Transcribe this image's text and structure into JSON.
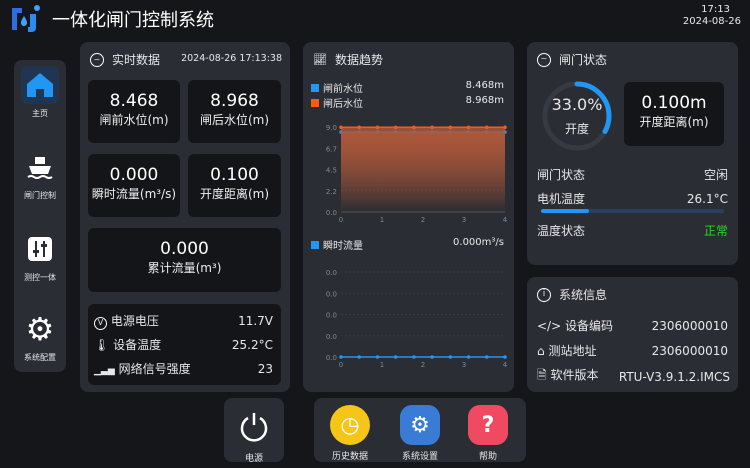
{
  "header": {
    "title": "一体化闸门控制系统",
    "time": "17:13",
    "date": "2024-08-26"
  },
  "sidebar": {
    "items": [
      {
        "label": "主页",
        "icon": "home-icon"
      },
      {
        "label": "闸门控制",
        "icon": "ship-icon"
      },
      {
        "label": "测控一体",
        "icon": "sliders-icon"
      },
      {
        "label": "系统配置",
        "icon": "gear-icon"
      }
    ]
  },
  "realtime": {
    "title": "实时数据",
    "timestamp": "2024-08-26 17:13:38",
    "cards": [
      {
        "value": "8.468",
        "label": "闸前水位(m)"
      },
      {
        "value": "8.968",
        "label": "闸后水位(m)"
      },
      {
        "value": "0.000",
        "label": "瞬时流量(m³/s)"
      },
      {
        "value": "0.100",
        "label": "开度距离(m)"
      },
      {
        "value": "0.000",
        "label": "累计流量(m³)"
      }
    ],
    "stats": [
      {
        "label": "电源电压",
        "value": "11.7V",
        "icon": "voltage-icon"
      },
      {
        "label": "设备温度",
        "value": "25.2°C",
        "icon": "thermometer-icon"
      },
      {
        "label": "网络信号强度",
        "value": "23",
        "icon": "signal-icon"
      }
    ]
  },
  "trend": {
    "title": "数据趋势",
    "legend1": [
      {
        "label": "闸前水位",
        "value": "8.468m",
        "color": "#2196f3"
      },
      {
        "label": "闸后水位",
        "value": "8.968m",
        "color": "#ff5a14"
      }
    ],
    "legend2": [
      {
        "label": "瞬时流量",
        "value": "0.000m³/s",
        "color": "#2196f3"
      }
    ]
  },
  "chart_data": [
    {
      "type": "area",
      "xlim": [
        0,
        4
      ],
      "ylim": [
        0,
        9.0
      ],
      "xticks": [
        "0",
        "1",
        "2",
        "3",
        "4"
      ],
      "yticks": [
        "0.0",
        "2.2",
        "4.5",
        "6.7",
        "9.0"
      ],
      "x": [
        0,
        0.444,
        0.889,
        1.333,
        1.778,
        2.222,
        2.667,
        3.111,
        3.556,
        4
      ],
      "series": [
        {
          "name": "闸前水位",
          "color": "#2196f3",
          "values": [
            8.468,
            8.468,
            8.468,
            8.468,
            8.468,
            8.468,
            8.468,
            8.468,
            8.468,
            8.468
          ]
        },
        {
          "name": "闸后水位",
          "color": "#ff5a14",
          "values": [
            8.968,
            8.968,
            8.968,
            8.968,
            8.968,
            8.968,
            8.968,
            8.968,
            8.968,
            8.968
          ]
        }
      ]
    },
    {
      "type": "line",
      "xlim": [
        0,
        4
      ],
      "xticks": [
        "0",
        "1",
        "2",
        "3",
        "4"
      ],
      "yticks": [
        "0.0",
        "0.0",
        "0.0",
        "0.0",
        "0.0"
      ],
      "x": [
        0,
        0.444,
        0.889,
        1.333,
        1.778,
        2.222,
        2.667,
        3.111,
        3.556,
        4
      ],
      "series": [
        {
          "name": "瞬时流量",
          "color": "#2196f3",
          "values": [
            0,
            0,
            0,
            0,
            0,
            0,
            0,
            0,
            0,
            0
          ]
        }
      ]
    }
  ],
  "gate": {
    "title": "闸门状态",
    "opening_percent": 33.0,
    "opening_text": "33.0%",
    "opening_label": "开度",
    "distance_value": "0.100m",
    "distance_label": "开度距离(m)",
    "status_label": "闸门状态",
    "status_value": "空闲",
    "motor_temp_label": "电机温度",
    "motor_temp_value": "26.1°C",
    "motor_temp_bar_percent": 26,
    "temp_status_label": "温度状态",
    "temp_status_value": "正常",
    "ok_color": "#22dd22"
  },
  "sysinfo": {
    "title": "系统信息",
    "rows": [
      {
        "label": "设备编码",
        "value": "2306000010",
        "icon": "code-icon"
      },
      {
        "label": "测站地址",
        "value": "2306000010",
        "icon": "station-icon"
      },
      {
        "label": "软件版本",
        "value": "RTU-V3.9.1.2.IMCS",
        "icon": "file-icon"
      }
    ]
  },
  "bottom": {
    "power": "电源",
    "history": "历史数据",
    "settings": "系统设置",
    "help": "帮助"
  }
}
